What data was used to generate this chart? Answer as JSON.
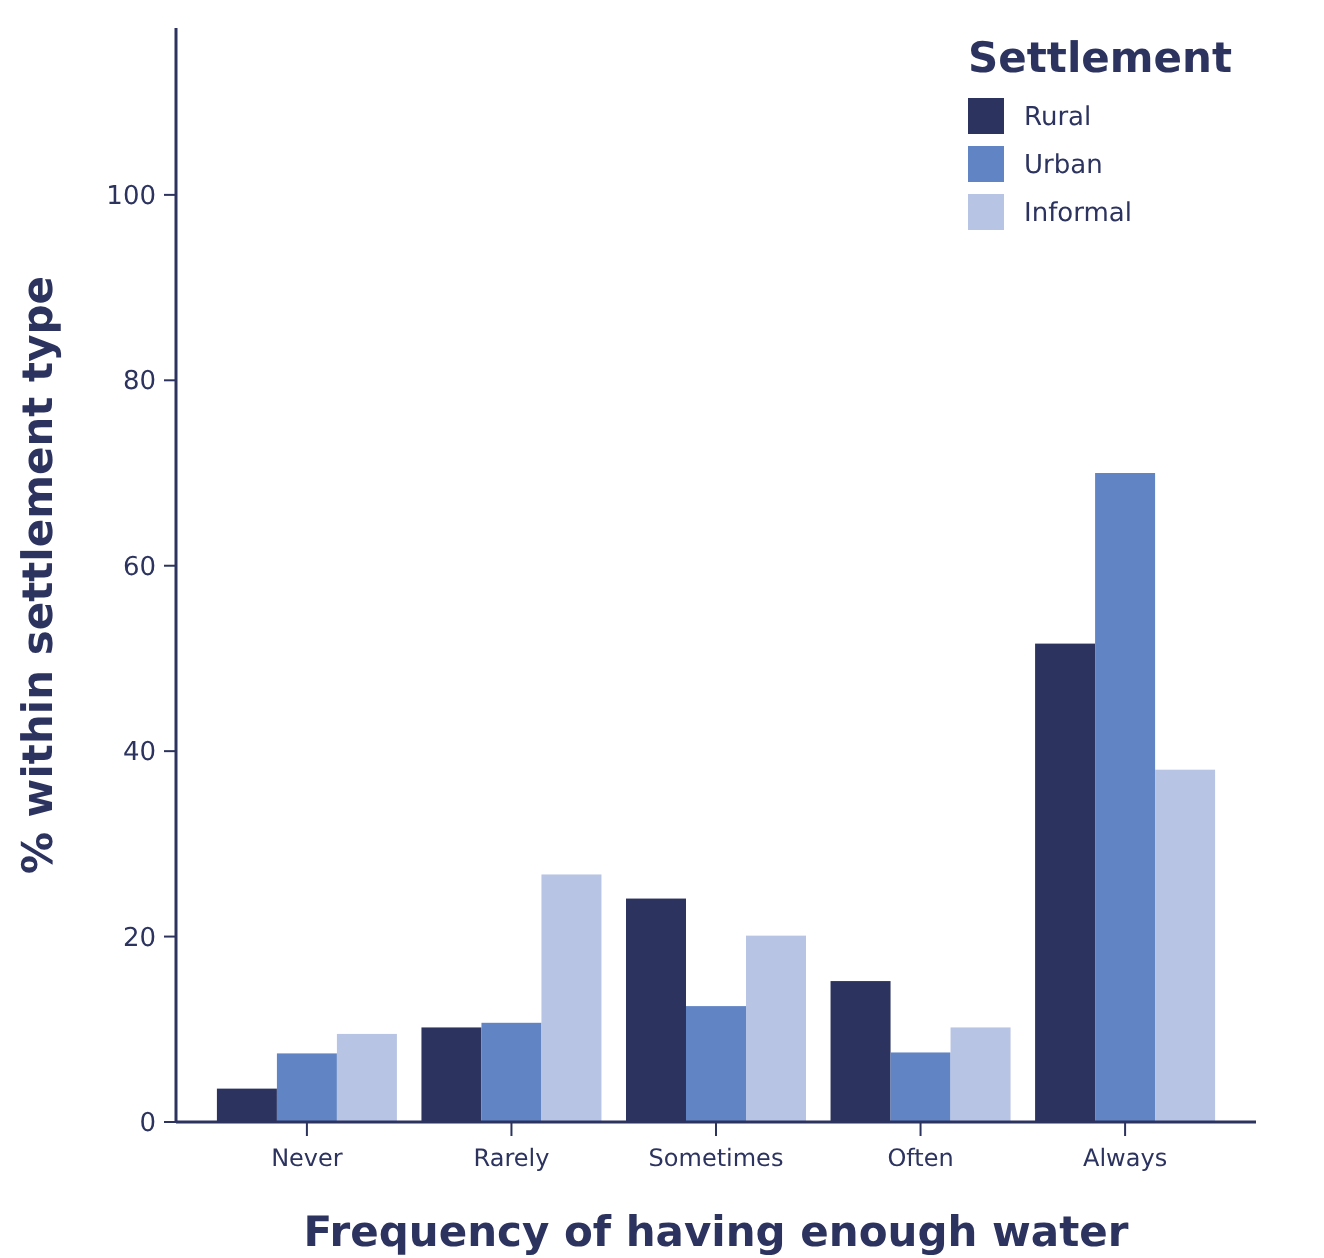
{
  "chart_data": {
    "type": "bar",
    "xlabel": "Frequency of having enough water",
    "ylabel": "% within settlement type",
    "legend_title": "Settlement",
    "categories": [
      "Never",
      "Rarely",
      "Sometimes",
      "Often",
      "Always"
    ],
    "series": [
      {
        "name": "Rural",
        "color": "#2c335e",
        "values": [
          3.6,
          10.2,
          24.1,
          15.2,
          51.6
        ]
      },
      {
        "name": "Urban",
        "color": "#6185c4",
        "values": [
          7.4,
          10.7,
          12.5,
          7.5,
          70.0
        ]
      },
      {
        "name": "Informal",
        "color": "#b8c4e4",
        "values": [
          9.5,
          26.7,
          20.1,
          10.2,
          38.0
        ]
      }
    ],
    "ylim": [
      0,
      118
    ],
    "yticks": [
      0,
      20,
      40,
      60,
      80,
      100
    ],
    "grid": false,
    "legend": "top right"
  }
}
